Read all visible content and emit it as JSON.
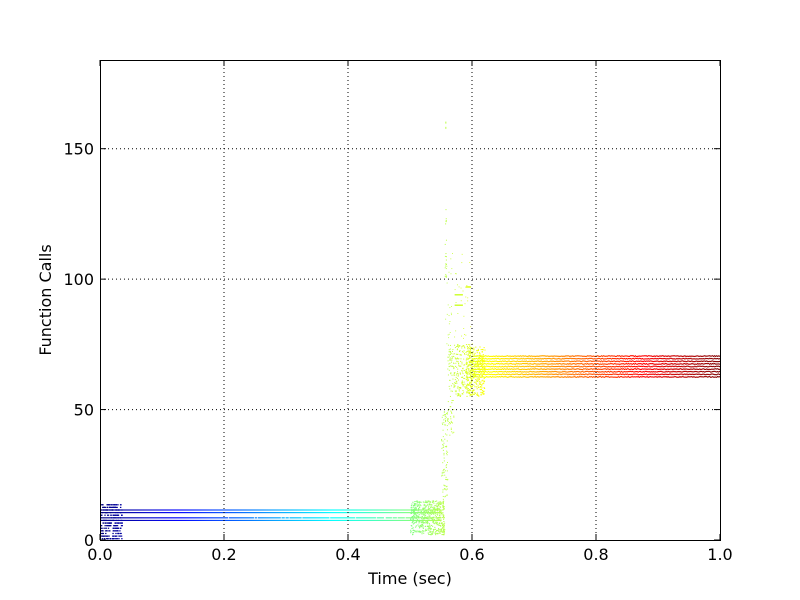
{
  "chart_data": {
    "type": "scatter",
    "title": "",
    "xlabel": "Time (sec)",
    "ylabel": "Function Calls",
    "xlim": [
      0.0,
      1.0
    ],
    "ylim": [
      0,
      184
    ],
    "x_ticks": [
      0.0,
      0.2,
      0.4,
      0.6,
      0.8,
      1.0
    ],
    "x_tick_labels": [
      "0.0",
      "0.2",
      "0.4",
      "0.6",
      "0.8",
      "1.0"
    ],
    "y_ticks": [
      0,
      50,
      100,
      150
    ],
    "y_tick_labels": [
      "0",
      "50",
      "100",
      "150"
    ],
    "grid": true,
    "legend": false,
    "colormap": "jet (color by time)",
    "colors": {
      "start": "#00007f",
      "mid": "#7fff7f",
      "end": "#7f0000",
      "grid": "#000000",
      "frame": "#000000"
    },
    "segments": [
      {
        "label": "startup cluster",
        "x_range": [
          0.0,
          0.035
        ],
        "y_range": [
          0,
          14
        ],
        "description_values": {
          "points_approx": 300
        }
      },
      {
        "label": "low plateau band",
        "x_range": [
          0.0,
          0.55
        ],
        "y_levels": [
          7.5,
          8.5,
          10.5,
          11.5
        ]
      },
      {
        "label": "transition cluster",
        "x_range": [
          0.5,
          0.55
        ],
        "y_range": [
          2,
          15
        ]
      },
      {
        "label": "ramp",
        "x_range": [
          0.55,
          0.6
        ],
        "y_range": [
          15,
          100
        ]
      },
      {
        "label": "spike",
        "x": 0.557,
        "y": 160
      },
      {
        "label": "high plateau band",
        "x_range": [
          0.6,
          1.0
        ],
        "y_range": [
          62,
          71
        ]
      }
    ]
  }
}
